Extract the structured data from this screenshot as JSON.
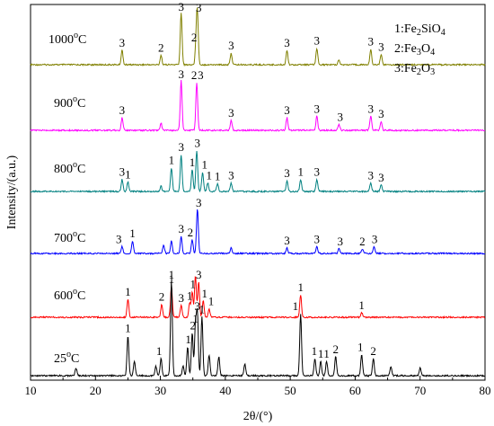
{
  "chart_data": {
    "type": "line",
    "title": "",
    "xlabel": "2θ/(°)",
    "ylabel": "Intensity/(a.u.)",
    "xlim": [
      10,
      80
    ],
    "xticks": [
      "10",
      "20",
      "30",
      "40",
      "50",
      "60",
      "70",
      "80"
    ],
    "y_ticks_shown": false,
    "legend": {
      "placement": "top-right",
      "entries": [
        {
          "id": "1",
          "label": "1:Fe2SiO4"
        },
        {
          "id": "2",
          "label": "2:Fe3O4"
        },
        {
          "id": "3",
          "label": "3:Fe2O3"
        }
      ]
    },
    "series": [
      {
        "name": "1000°C",
        "color": "#808000",
        "peaks": [
          [
            24.1,
            0.28
          ],
          [
            30.1,
            0.18
          ],
          [
            33.2,
            1.0
          ],
          [
            35.5,
            0.38
          ],
          [
            35.7,
            0.95
          ],
          [
            40.9,
            0.22
          ],
          [
            49.5,
            0.28
          ],
          [
            54.1,
            0.32
          ],
          [
            57.5,
            0.1
          ],
          [
            62.4,
            0.3
          ],
          [
            64.0,
            0.2
          ]
        ],
        "labels": [
          {
            "text": "3",
            "x": 24.1
          },
          {
            "text": "2",
            "x": 30.1
          },
          {
            "text": "3",
            "x": 33.2
          },
          {
            "text": "2",
            "x": 35.2
          },
          {
            "text": "3",
            "x": 35.9
          },
          {
            "text": "3",
            "x": 40.9
          },
          {
            "text": "3",
            "x": 49.5
          },
          {
            "text": "3",
            "x": 54.1
          },
          {
            "text": "3",
            "x": 62.4
          },
          {
            "text": "3",
            "x": 64.0
          }
        ]
      },
      {
        "name": "900°C",
        "color": "#ff00ff",
        "peaks": [
          [
            24.1,
            0.25
          ],
          [
            30.1,
            0.14
          ],
          [
            33.2,
            1.0
          ],
          [
            35.6,
            0.95
          ],
          [
            40.9,
            0.2
          ],
          [
            49.5,
            0.25
          ],
          [
            54.1,
            0.28
          ],
          [
            57.5,
            0.12
          ],
          [
            62.4,
            0.28
          ],
          [
            64.0,
            0.18
          ]
        ],
        "labels": [
          {
            "text": "3",
            "x": 24.1
          },
          {
            "text": "3",
            "x": 33.2
          },
          {
            "text": "2",
            "x": 35.2
          },
          {
            "text": "3",
            "x": 36.2
          },
          {
            "text": "3",
            "x": 40.9
          },
          {
            "text": "3",
            "x": 49.5
          },
          {
            "text": "3",
            "x": 54.1
          },
          {
            "text": "3",
            "x": 57.7
          },
          {
            "text": "3",
            "x": 62.4
          },
          {
            "text": "3",
            "x": 64.0
          }
        ]
      },
      {
        "name": "800°C",
        "color": "#008080",
        "peaks": [
          [
            24.1,
            0.28
          ],
          [
            25.0,
            0.22
          ],
          [
            30.1,
            0.12
          ],
          [
            31.7,
            0.55
          ],
          [
            33.2,
            0.85
          ],
          [
            34.9,
            0.5
          ],
          [
            35.6,
            0.95
          ],
          [
            36.5,
            0.45
          ],
          [
            37.3,
            0.2
          ],
          [
            38.8,
            0.18
          ],
          [
            40.9,
            0.2
          ],
          [
            49.5,
            0.25
          ],
          [
            51.6,
            0.28
          ],
          [
            54.1,
            0.28
          ],
          [
            62.4,
            0.2
          ],
          [
            64.0,
            0.15
          ]
        ],
        "labels": [
          {
            "text": "3",
            "x": 24.1
          },
          {
            "text": "1",
            "x": 25.0
          },
          {
            "text": "1",
            "x": 31.7
          },
          {
            "text": "3",
            "x": 33.2
          },
          {
            "text": "1",
            "x": 34.9
          },
          {
            "text": "3",
            "x": 35.7
          },
          {
            "text": "1",
            "x": 36.8
          },
          {
            "text": "1",
            "x": 37.5
          },
          {
            "text": "1",
            "x": 38.8
          },
          {
            "text": "3",
            "x": 40.9
          },
          {
            "text": "3",
            "x": 49.5
          },
          {
            "text": "1",
            "x": 51.6
          },
          {
            "text": "3",
            "x": 54.1
          },
          {
            "text": "3",
            "x": 62.4
          },
          {
            "text": "3",
            "x": 64.0
          }
        ]
      },
      {
        "name": "700°C",
        "color": "#0000ff",
        "peaks": [
          [
            24.1,
            0.15
          ],
          [
            25.7,
            0.28
          ],
          [
            30.5,
            0.18
          ],
          [
            31.7,
            0.28
          ],
          [
            33.2,
            0.38
          ],
          [
            34.9,
            0.3
          ],
          [
            35.7,
            1.0
          ],
          [
            40.9,
            0.12
          ],
          [
            49.5,
            0.12
          ],
          [
            54.1,
            0.15
          ],
          [
            57.5,
            0.1
          ],
          [
            61.1,
            0.1
          ],
          [
            62.9,
            0.15
          ]
        ],
        "labels": [
          {
            "text": "3",
            "x": 23.6
          },
          {
            "text": "1",
            "x": 25.7
          },
          {
            "text": "3",
            "x": 33.2
          },
          {
            "text": "2",
            "x": 34.6
          },
          {
            "text": "3",
            "x": 35.9
          },
          {
            "text": "3",
            "x": 49.5
          },
          {
            "text": "3",
            "x": 54.1
          },
          {
            "text": "3",
            "x": 57.7
          },
          {
            "text": "2",
            "x": 61.1
          },
          {
            "text": "3",
            "x": 63.0
          }
        ]
      },
      {
        "name": "600°C",
        "color": "#ff0000",
        "peaks": [
          [
            25.0,
            0.38
          ],
          [
            30.2,
            0.28
          ],
          [
            31.7,
            0.65
          ],
          [
            33.2,
            0.25
          ],
          [
            34.5,
            0.3
          ],
          [
            34.9,
            0.55
          ],
          [
            35.4,
            0.9
          ],
          [
            35.9,
            0.75
          ],
          [
            36.6,
            0.35
          ],
          [
            37.5,
            0.18
          ],
          [
            51.6,
            0.48
          ],
          [
            61.0,
            0.1
          ]
        ],
        "labels": [
          {
            "text": "1",
            "x": 25.0
          },
          {
            "text": "2",
            "x": 30.2
          },
          {
            "text": "1",
            "x": 31.7
          },
          {
            "text": "3",
            "x": 33.2
          },
          {
            "text": "1",
            "x": 34.5
          },
          {
            "text": "1",
            "x": 35.0
          },
          {
            "text": "3",
            "x": 35.9
          },
          {
            "text": "1",
            "x": 36.8
          },
          {
            "text": "1",
            "x": 37.8
          },
          {
            "text": "1",
            "x": 51.6
          },
          {
            "text": "1",
            "x": 61.0
          }
        ]
      },
      {
        "name": "25°C",
        "color": "#000000",
        "peaks": [
          [
            17.0,
            0.08
          ],
          [
            25.0,
            0.42
          ],
          [
            26.0,
            0.15
          ],
          [
            29.3,
            0.1
          ],
          [
            30.1,
            0.18
          ],
          [
            31.7,
            1.0
          ],
          [
            33.5,
            0.1
          ],
          [
            34.2,
            0.3
          ],
          [
            34.9,
            0.45
          ],
          [
            35.4,
            0.52
          ],
          [
            35.7,
            0.65
          ],
          [
            36.4,
            0.62
          ],
          [
            37.5,
            0.22
          ],
          [
            39.0,
            0.2
          ],
          [
            43.0,
            0.12
          ],
          [
            51.6,
            0.65
          ],
          [
            53.8,
            0.18
          ],
          [
            54.7,
            0.15
          ],
          [
            55.6,
            0.15
          ],
          [
            57.0,
            0.2
          ],
          [
            61.0,
            0.22
          ],
          [
            62.8,
            0.18
          ],
          [
            65.5,
            0.1
          ],
          [
            70.0,
            0.08
          ]
        ],
        "labels": [
          {
            "text": "1",
            "x": 25.0
          },
          {
            "text": "1",
            "x": 29.8
          },
          {
            "text": "1",
            "x": 31.7
          },
          {
            "text": "1",
            "x": 34.3
          },
          {
            "text": "2",
            "x": 35.0
          },
          {
            "text": "1",
            "x": 35.4
          },
          {
            "text": "3",
            "x": 35.7
          },
          {
            "text": "1",
            "x": 36.4
          },
          {
            "text": "1",
            "x": 50.8
          },
          {
            "text": "1",
            "x": 53.7
          },
          {
            "text": "1",
            "x": 54.7
          },
          {
            "text": "1",
            "x": 55.6
          },
          {
            "text": "2",
            "x": 57.0
          },
          {
            "text": "1",
            "x": 60.8
          },
          {
            "text": "2",
            "x": 62.8
          }
        ]
      }
    ]
  }
}
